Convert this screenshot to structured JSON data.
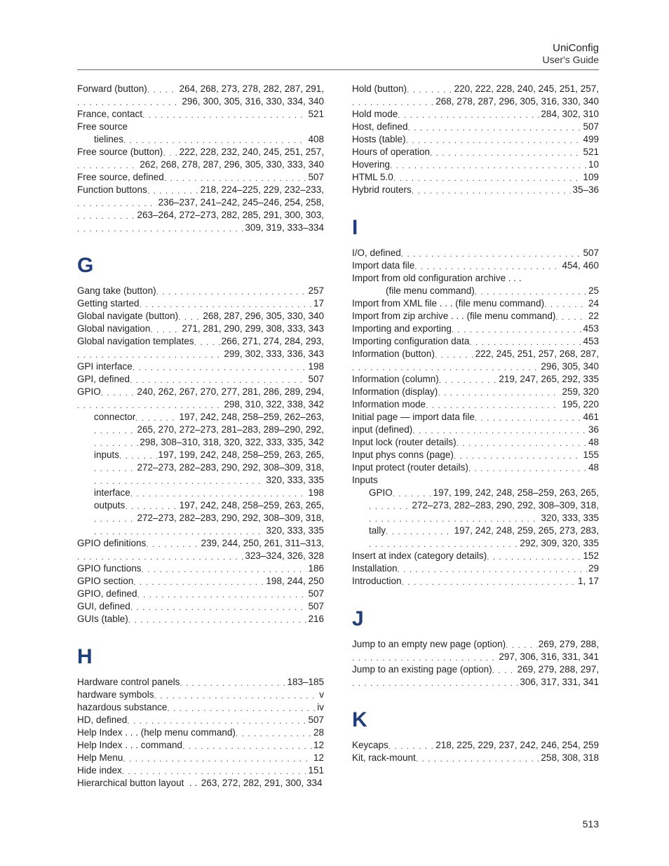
{
  "header": {
    "title": "UniConfig",
    "subtitle": "User's Guide"
  },
  "footer_page": "513",
  "columns": [
    {
      "blocks": [
        {
          "entries": [
            {
              "label": "Forward (button)",
              "pages": "264, 268, 273, 278, 282, 287, 291,"
            },
            {
              "cont": true,
              "pages": "296, 300, 305, 316, 330, 334, 340"
            },
            {
              "label": "France, contact",
              "pages": "521"
            },
            {
              "label": "Free source",
              "noPages": true
            },
            {
              "indent": 1,
              "label": "tielines",
              "pages": "408"
            },
            {
              "label": "Free source (button)",
              "pages": "222, 228, 232, 240, 245, 251, 257,"
            },
            {
              "cont": true,
              "pages": "262, 268, 278, 287, 296, 305, 330, 333, 340"
            },
            {
              "label": "Free source, defined",
              "pages": "507"
            },
            {
              "label": "Function buttons",
              "pages": "218, 224–225, 229, 232–233,"
            },
            {
              "cont": true,
              "pages": "236–237, 241–242, 245–246, 254, 258,"
            },
            {
              "cont": true,
              "pages": "263–264, 272–273, 282, 285, 291, 300, 303,"
            },
            {
              "cont": true,
              "pages": "309, 319, 333–334"
            }
          ]
        },
        {
          "letter": "G",
          "entries": [
            {
              "label": "Gang take (button)",
              "pages": "257"
            },
            {
              "label": "Getting started",
              "pages": "17"
            },
            {
              "label": "Global navigate (button)",
              "pages": "268, 287, 296, 305, 330, 340"
            },
            {
              "label": "Global navigation",
              "pages": "271, 281, 290, 299, 308, 333, 343"
            },
            {
              "label": "Global navigation templates",
              "pages": "266, 271, 274, 284, 293,"
            },
            {
              "cont": true,
              "pages": "299, 302, 333, 336, 343"
            },
            {
              "label": "GPI interface",
              "pages": "198"
            },
            {
              "label": "GPI, defined",
              "pages": "507"
            },
            {
              "label": "GPIO",
              "pages": "240, 262, 267, 270, 277, 281, 286, 289, 294,"
            },
            {
              "cont": true,
              "pages": "298, 310, 322, 338, 342"
            },
            {
              "indent": 1,
              "label": "connector",
              "pages": "197, 242, 248, 258–259, 262–263,"
            },
            {
              "cont": true,
              "indent": 1,
              "pages": "265, 270, 272–273, 281–283, 289–290, 292,"
            },
            {
              "cont": true,
              "indent": 1,
              "pages": "298, 308–310, 318, 320, 322, 333, 335, 342"
            },
            {
              "indent": 1,
              "label": "inputs",
              "pages": "197, 199, 242, 248, 258–259, 263, 265,"
            },
            {
              "cont": true,
              "indent": 1,
              "pages": "272–273, 282–283, 290, 292, 308–309, 318,"
            },
            {
              "cont": true,
              "indent": 1,
              "pages": "320, 333, 335"
            },
            {
              "indent": 1,
              "label": "interface",
              "pages": "198"
            },
            {
              "indent": 1,
              "label": "outputs",
              "pages": "197, 242, 248, 258–259, 263, 265,"
            },
            {
              "cont": true,
              "indent": 1,
              "pages": "272–273, 282–283, 290, 292, 308–309, 318,"
            },
            {
              "cont": true,
              "indent": 1,
              "pages": "320, 333, 335"
            },
            {
              "label": "GPIO definitions",
              "pages": "239, 244, 250, 261, 311–313,"
            },
            {
              "cont": true,
              "pages": "323–324, 326, 328"
            },
            {
              "label": "GPIO functions",
              "pages": "186"
            },
            {
              "label": "GPIO section",
              "pages": "198, 244, 250"
            },
            {
              "label": "GPIO, defined",
              "pages": "507"
            },
            {
              "label": "GUI, defined",
              "pages": "507"
            },
            {
              "label": "GUIs (table)",
              "pages": "216"
            }
          ]
        },
        {
          "letter": "H",
          "entries": [
            {
              "label": "Hardware control panels",
              "pages": "183–185"
            },
            {
              "label": "hardware symbols",
              "pages": "v"
            },
            {
              "label": "hazardous substance",
              "pages": "iv"
            },
            {
              "label": "HD, defined",
              "pages": "507"
            },
            {
              "label": "Help Index . . . (help menu command)",
              "pages": "28"
            },
            {
              "label": "Help Index . . . command",
              "pages": "12"
            },
            {
              "label": "Help Menu",
              "pages": "12"
            },
            {
              "label": "Hide index",
              "pages": "151"
            },
            {
              "label": "Hierarchical button layout",
              "pages": "263, 272, 282, 291, 300, 334",
              "tight": true
            }
          ]
        }
      ]
    },
    {
      "blocks": [
        {
          "entries": [
            {
              "label": "Hold (button)",
              "pages": "220, 222, 228, 240, 245, 251, 257,"
            },
            {
              "cont": true,
              "pages": "268, 278, 287, 296, 305, 316, 330, 340"
            },
            {
              "label": "Hold mode",
              "pages": "284, 302, 310"
            },
            {
              "label": "Host, defined",
              "pages": "507"
            },
            {
              "label": "Hosts (table)",
              "pages": "499"
            },
            {
              "label": "Hours of operation",
              "pages": "521"
            },
            {
              "label": "Hovering",
              "pages": "10"
            },
            {
              "label": "HTML 5.0",
              "pages": "109"
            },
            {
              "label": "Hybrid routers",
              "pages": "35–36"
            }
          ]
        },
        {
          "letter": "I",
          "entries": [
            {
              "label": "I/O, defined",
              "pages": "507"
            },
            {
              "label": "Import data file",
              "pages": "454, 460"
            },
            {
              "label": "Import from old configuration archive . . .",
              "noPages": true
            },
            {
              "indent": 2,
              "label": "(file menu command)",
              "pages": "25"
            },
            {
              "label": "Import from XML file . . . (file menu command)",
              "pages": "24"
            },
            {
              "label": "Import from zip archive . . . (file menu command)",
              "pages": "22"
            },
            {
              "label": "Importing and exporting",
              "pages": "453"
            },
            {
              "label": "Importing configuration data",
              "pages": "453"
            },
            {
              "label": "Information (button)",
              "pages": "222, 245, 251, 257, 268, 287,"
            },
            {
              "cont": true,
              "pages": "296, 305, 340"
            },
            {
              "label": "Information (column)",
              "pages": "219, 247, 265, 292, 335"
            },
            {
              "label": "Information (display)",
              "pages": "259, 320"
            },
            {
              "label": "Information mode",
              "pages": "195, 220"
            },
            {
              "label": "Initial page — import data file",
              "pages": "461"
            },
            {
              "label": "input (defined)",
              "pages": "36"
            },
            {
              "label": "Input lock (router details)",
              "pages": "48"
            },
            {
              "label": "Input phys conns (page)",
              "pages": "155"
            },
            {
              "label": "Input protect (router details)",
              "pages": "48"
            },
            {
              "label": "Inputs",
              "noPages": true
            },
            {
              "indent": 1,
              "label": "GPIO",
              "pages": "197, 199, 242, 248, 258–259, 263, 265,"
            },
            {
              "cont": true,
              "indent": 1,
              "pages": "272–273, 282–283, 290, 292, 308–309, 318,"
            },
            {
              "cont": true,
              "indent": 1,
              "pages": "320, 333, 335"
            },
            {
              "indent": 1,
              "label": "tally",
              "pages": "197, 242, 248, 259, 265, 273, 283,"
            },
            {
              "cont": true,
              "indent": 1,
              "pages": "292, 309, 320, 335"
            },
            {
              "label": "Insert at index (category details)",
              "pages": "152"
            },
            {
              "label": "Installation",
              "pages": "29"
            },
            {
              "label": "Introduction",
              "pages": "1, 17"
            }
          ]
        },
        {
          "letter": "J",
          "entries": [
            {
              "label": "Jump to an empty new page (option)",
              "pages": "269, 279, 288,"
            },
            {
              "cont": true,
              "pages": "297, 306, 316, 331, 341"
            },
            {
              "label": "Jump to an existing page (option)",
              "pages": "269, 279, 288, 297,"
            },
            {
              "cont": true,
              "pages": "306, 317, 331, 341"
            }
          ]
        },
        {
          "letter": "K",
          "entries": [
            {
              "label": "Keycaps",
              "pages": "218, 225, 229, 237, 242, 246, 254, 259"
            },
            {
              "label": "Kit, rack-mount",
              "pages": "258, 308, 318"
            }
          ]
        }
      ]
    }
  ]
}
